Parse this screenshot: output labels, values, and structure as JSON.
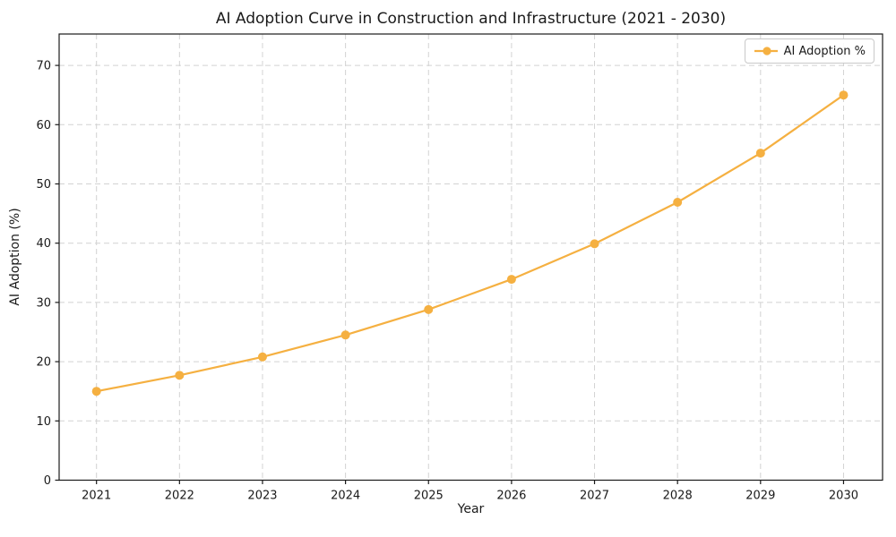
{
  "chart_data": {
    "type": "line",
    "title": "AI Adoption Curve in Construction and Infrastructure (2021 - 2030)",
    "xlabel": "Year",
    "ylabel": "AI Adoption (%)",
    "x": [
      2021,
      2022,
      2023,
      2024,
      2025,
      2026,
      2027,
      2028,
      2029,
      2030
    ],
    "series": [
      {
        "name": "AI Adoption %",
        "color": "#F5B041",
        "marker": "circle",
        "values": [
          15.0,
          17.7,
          20.8,
          24.5,
          28.8,
          33.9,
          39.9,
          46.9,
          55.2,
          65.0
        ]
      }
    ],
    "xlim": [
      2020.55,
      2030.47
    ],
    "ylim": [
      0,
      75.3
    ],
    "yticks": [
      0,
      10,
      20,
      30,
      40,
      50,
      60,
      70
    ],
    "grid": true,
    "grid_style": "dashed",
    "legend_position": "upper right",
    "colors": {
      "line": "#F5B041",
      "grid": "#d2d2d2",
      "spine": "#1a1a1a",
      "text": "#1a1a1a",
      "background": "#ffffff"
    }
  }
}
